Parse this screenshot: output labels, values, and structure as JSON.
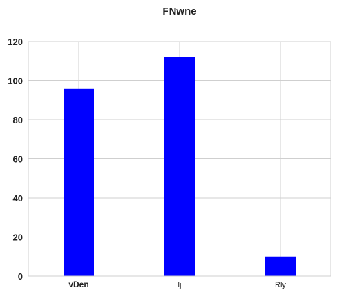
{
  "chart_data": {
    "type": "bar",
    "title": "FNwne",
    "xlabel": "",
    "ylabel": "",
    "categories": [
      "vDen",
      "lj",
      "Rly"
    ],
    "values": [
      96,
      112,
      10
    ],
    "ylim": [
      0,
      120
    ],
    "yticks": [
      0,
      20,
      40,
      60,
      80,
      100,
      120
    ],
    "bar_color": "#0000ff",
    "grid": true,
    "legend": "none"
  }
}
